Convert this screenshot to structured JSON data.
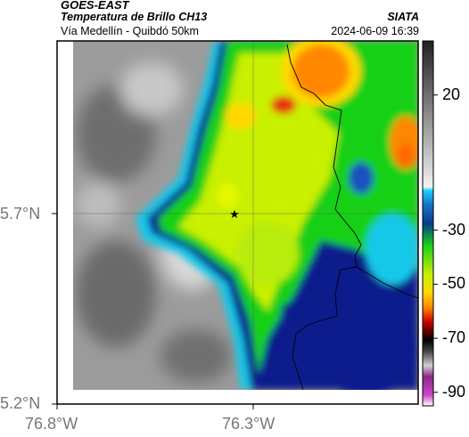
{
  "header": {
    "satellite": "GOES-EAST",
    "product": "Temperatura de Brillo CH13",
    "organization": "SIATA",
    "area": "Vía Medellín - Quibdó 50km",
    "datetime": "2024-06-09 16:39"
  },
  "axes": {
    "lat_labels": [
      "5.7°N",
      "5.2°N"
    ],
    "lon_labels": [
      "76.8°W",
      "76.3°W"
    ]
  },
  "colorbar": {
    "tick_labels": [
      "20",
      "-30",
      "-50",
      "-70",
      "-90"
    ],
    "tick_values": [
      20,
      -30,
      -50,
      -70,
      -90
    ],
    "range": [
      -95,
      40
    ]
  },
  "map": {
    "marker_symbol": "★",
    "colors": {
      "land_grey": "#9a9a9a",
      "cold_blue": "#0a1a8c",
      "cyan": "#18c8e8",
      "green": "#18d018",
      "yellow_green": "#c8f000",
      "orange": "#ff8800",
      "red": "#e8300a"
    }
  }
}
